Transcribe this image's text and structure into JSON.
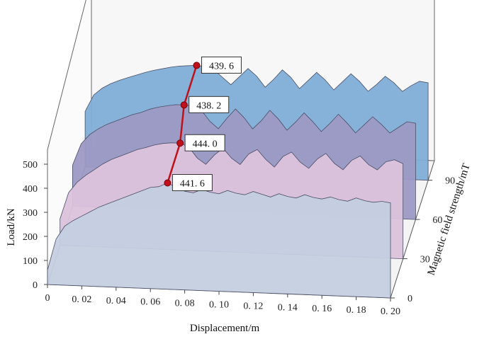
{
  "chart_data": {
    "type": "area",
    "style": "3d-stacked-waterfall",
    "xlabel": "Displacement/m",
    "ylabel": "Load/kN",
    "zlabel": "Magnetic field strength/mT",
    "x_ticks": [
      "0",
      "0. 02",
      "0. 04",
      "0. 06",
      "0. 08",
      "0. 10",
      "0. 12",
      "0. 14",
      "0. 16",
      "0. 18",
      "0. 20"
    ],
    "y_ticks": [
      "0",
      "100",
      "200",
      "300",
      "400",
      "500"
    ],
    "z_ticks": [
      "0",
      "30",
      "60",
      "90"
    ],
    "xlim": [
      0,
      0.2
    ],
    "ylim": [
      0,
      500
    ],
    "series": [
      {
        "name": "0",
        "color": "#c4cfe0",
        "x": [
          0,
          0.005,
          0.01,
          0.015,
          0.02,
          0.025,
          0.03,
          0.035,
          0.04,
          0.045,
          0.05,
          0.055,
          0.06,
          0.065,
          0.07,
          0.075,
          0.08,
          0.085,
          0.09,
          0.095,
          0.1,
          0.105,
          0.11,
          0.115,
          0.12,
          0.125,
          0.13,
          0.135,
          0.14,
          0.145,
          0.15,
          0.155,
          0.16,
          0.165,
          0.17,
          0.175,
          0.18,
          0.185,
          0.19,
          0.195,
          0.2
        ],
        "values": [
          60,
          190,
          245,
          270,
          290,
          310,
          330,
          345,
          360,
          375,
          390,
          405,
          420,
          425,
          441.6,
          425,
          410,
          405,
          420,
          410,
          405,
          420,
          410,
          405,
          420,
          410,
          400,
          415,
          405,
          400,
          415,
          405,
          400,
          410,
          400,
          395,
          410,
          400,
          395,
          400,
          395
        ]
      },
      {
        "name": "30",
        "color": "#dcc2dc",
        "x": [
          0,
          0.005,
          0.01,
          0.015,
          0.02,
          0.025,
          0.03,
          0.035,
          0.04,
          0.045,
          0.05,
          0.055,
          0.06,
          0.065,
          0.07,
          0.075,
          0.08,
          0.085,
          0.09,
          0.095,
          0.1,
          0.105,
          0.11,
          0.115,
          0.12,
          0.125,
          0.13,
          0.135,
          0.14,
          0.145,
          0.15,
          0.155,
          0.16,
          0.165,
          0.17,
          0.175,
          0.18,
          0.185,
          0.19,
          0.195,
          0.2
        ],
        "values": [
          110,
          220,
          265,
          295,
          320,
          345,
          365,
          380,
          395,
          410,
          420,
          432,
          440,
          444,
          444.0,
          430,
          385,
          360,
          400,
          430,
          390,
          365,
          410,
          430,
          390,
          360,
          405,
          425,
          385,
          360,
          400,
          425,
          385,
          360,
          400,
          420,
          385,
          365,
          400,
          410,
          395
        ]
      },
      {
        "name": "60",
        "color": "#9c9ac4",
        "x": [
          0,
          0.005,
          0.01,
          0.015,
          0.02,
          0.025,
          0.03,
          0.035,
          0.04,
          0.045,
          0.05,
          0.055,
          0.06,
          0.065,
          0.07,
          0.075,
          0.08,
          0.085,
          0.09,
          0.095,
          0.1,
          0.105,
          0.11,
          0.115,
          0.12,
          0.125,
          0.13,
          0.135,
          0.14,
          0.145,
          0.15,
          0.155,
          0.16,
          0.165,
          0.17,
          0.175,
          0.18,
          0.185,
          0.19,
          0.195,
          0.2
        ],
        "values": [
          170,
          260,
          300,
          325,
          345,
          360,
          375,
          390,
          400,
          415,
          425,
          432,
          438,
          438.2,
          435,
          420,
          375,
          345,
          390,
          430,
          395,
          350,
          385,
          430,
          395,
          350,
          385,
          425,
          390,
          350,
          385,
          425,
          390,
          350,
          385,
          420,
          390,
          355,
          380,
          405,
          400
        ]
      },
      {
        "name": "90",
        "color": "#7fadd6",
        "x": [
          0,
          0.005,
          0.01,
          0.015,
          0.02,
          0.025,
          0.03,
          0.035,
          0.04,
          0.045,
          0.05,
          0.055,
          0.06,
          0.065,
          0.07,
          0.075,
          0.08,
          0.085,
          0.09,
          0.095,
          0.1,
          0.105,
          0.11,
          0.115,
          0.12,
          0.125,
          0.13,
          0.135,
          0.14,
          0.145,
          0.15,
          0.155,
          0.16,
          0.165,
          0.17,
          0.175,
          0.18,
          0.185,
          0.19,
          0.195,
          0.2
        ],
        "values": [
          230,
          300,
          330,
          350,
          365,
          378,
          390,
          402,
          412,
          420,
          428,
          434,
          437,
          439.6,
          436,
          425,
          395,
          365,
          400,
          435,
          405,
          360,
          395,
          435,
          405,
          360,
          395,
          430,
          400,
          360,
          395,
          430,
          400,
          360,
          390,
          425,
          400,
          365,
          390,
          410,
          405
        ]
      }
    ],
    "annotations": [
      {
        "series": "90",
        "x": 0.065,
        "value": "439. 6"
      },
      {
        "series": "60",
        "x": 0.065,
        "value": "438. 2"
      },
      {
        "series": "30",
        "x": 0.07,
        "value": "444. 0"
      },
      {
        "series": "0",
        "x": 0.07,
        "value": "441. 6"
      }
    ],
    "marker_color": "#c0101a",
    "grid": false
  }
}
